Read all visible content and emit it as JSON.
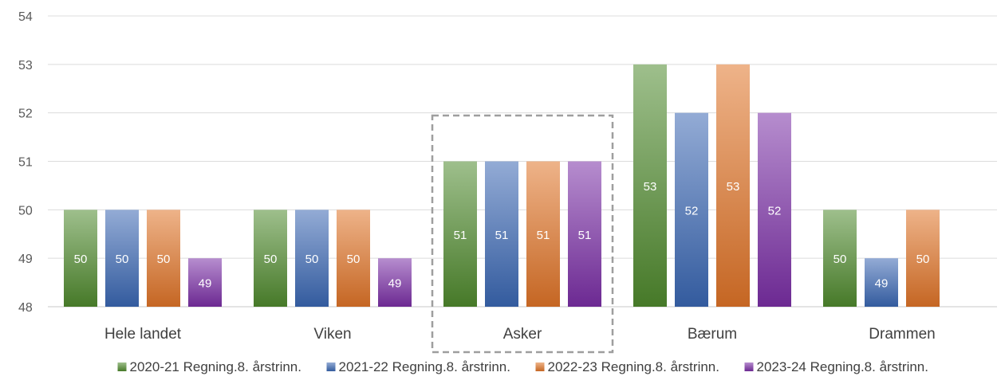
{
  "chart_data": {
    "type": "bar",
    "title": "",
    "xlabel": "",
    "ylabel": "",
    "ylim": [
      48,
      54
    ],
    "yticks": [
      48,
      49,
      50,
      51,
      52,
      53,
      54
    ],
    "grid": true,
    "legend_position": "bottom",
    "categories": [
      "Hele landet",
      "Viken",
      "Asker",
      "Bærum",
      "Drammen"
    ],
    "highlighted_category": "Asker",
    "series": [
      {
        "name": "2020-21 Regning.8. årstrinn.",
        "color": "#4f8a2e",
        "values": [
          50,
          50,
          51,
          53,
          50
        ]
      },
      {
        "name": "2021-22 Regning.8. årstrinn.",
        "color": "#3a67b3",
        "values": [
          50,
          50,
          51,
          52,
          49
        ]
      },
      {
        "name": "2022-23 Regning.8. årstrinn.",
        "color": "#e07428",
        "values": [
          50,
          50,
          51,
          53,
          50
        ]
      },
      {
        "name": "2023-24 Regning.8. årstrinn.",
        "color": "#7b2fa6",
        "values": [
          49,
          49,
          51,
          52,
          null
        ]
      }
    ]
  }
}
